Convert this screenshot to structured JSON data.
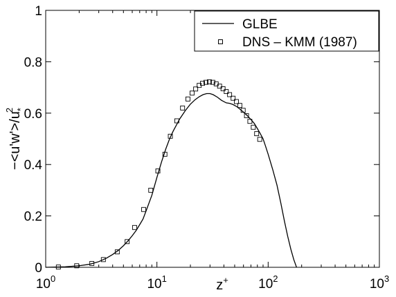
{
  "chart_data": {
    "type": "line",
    "x_scale": "log",
    "xlim": [
      1,
      1000
    ],
    "ylim": [
      0,
      1
    ],
    "grid": false,
    "legend_position": "top-right",
    "xlabel": {
      "base": "z",
      "superscript": "+"
    },
    "ylabel": {
      "base": "−<u'w'>/u",
      "subscript": "*",
      "superscript": "2"
    },
    "x_ticks": [
      {
        "value": 1,
        "base": "10",
        "exp": "0"
      },
      {
        "value": 10,
        "base": "10",
        "exp": "1"
      },
      {
        "value": 100,
        "base": "10",
        "exp": "2"
      },
      {
        "value": 1000,
        "base": "10",
        "exp": "3"
      }
    ],
    "y_ticks": [
      {
        "value": 0,
        "label": "0"
      },
      {
        "value": 0.2,
        "label": "0.2"
      },
      {
        "value": 0.4,
        "label": "0.4"
      },
      {
        "value": 0.6,
        "label": "0.6"
      },
      {
        "value": 0.8,
        "label": "0.8"
      },
      {
        "value": 1,
        "label": "1"
      }
    ],
    "series": [
      {
        "name": "GLBE",
        "style": "line",
        "color": "#000000",
        "points": [
          [
            1.0,
            0.0
          ],
          [
            1.5,
            0.002
          ],
          [
            2.0,
            0.006
          ],
          [
            2.5,
            0.012
          ],
          [
            3.0,
            0.022
          ],
          [
            3.5,
            0.035
          ],
          [
            4.0,
            0.05
          ],
          [
            4.5,
            0.066
          ],
          [
            5.0,
            0.084
          ],
          [
            5.5,
            0.103
          ],
          [
            6.0,
            0.123
          ],
          [
            6.5,
            0.143
          ],
          [
            7.0,
            0.166
          ],
          [
            7.5,
            0.188
          ],
          [
            8.0,
            0.22
          ],
          [
            9.0,
            0.28
          ],
          [
            10.0,
            0.35
          ],
          [
            11.0,
            0.41
          ],
          [
            12.0,
            0.46
          ],
          [
            13.0,
            0.5
          ],
          [
            14.0,
            0.53
          ],
          [
            16.0,
            0.577
          ],
          [
            18.0,
            0.61
          ],
          [
            20.0,
            0.635
          ],
          [
            22.0,
            0.652
          ],
          [
            24.0,
            0.664
          ],
          [
            26.0,
            0.672
          ],
          [
            28.0,
            0.676
          ],
          [
            30.0,
            0.676
          ],
          [
            32.0,
            0.672
          ],
          [
            35.0,
            0.662
          ],
          [
            38.0,
            0.65
          ],
          [
            42.0,
            0.64
          ],
          [
            45.0,
            0.638
          ],
          [
            48.0,
            0.634
          ],
          [
            52.0,
            0.626
          ],
          [
            56.0,
            0.615
          ],
          [
            60.0,
            0.604
          ],
          [
            65.0,
            0.59
          ],
          [
            70.0,
            0.575
          ],
          [
            75.0,
            0.56
          ],
          [
            80.0,
            0.54
          ],
          [
            85.0,
            0.52
          ],
          [
            90.0,
            0.5
          ],
          [
            95.0,
            0.47
          ],
          [
            100.0,
            0.44
          ],
          [
            110.0,
            0.38
          ],
          [
            120.0,
            0.32
          ],
          [
            130.0,
            0.25
          ],
          [
            140.0,
            0.18
          ],
          [
            150.0,
            0.12
          ],
          [
            160.0,
            0.07
          ],
          [
            170.0,
            0.03
          ],
          [
            180.0,
            0.0
          ]
        ]
      },
      {
        "name": "DNS – KMM (1987)",
        "style": "markers",
        "marker": "square",
        "color": "#000000",
        "points": [
          [
            1.3,
            0.001
          ],
          [
            1.9,
            0.006
          ],
          [
            2.6,
            0.015
          ],
          [
            3.3,
            0.03
          ],
          [
            4.4,
            0.06
          ],
          [
            5.4,
            0.1
          ],
          [
            6.3,
            0.155
          ],
          [
            7.6,
            0.225
          ],
          [
            8.8,
            0.3
          ],
          [
            10.2,
            0.375
          ],
          [
            11.8,
            0.44
          ],
          [
            13.2,
            0.51
          ],
          [
            15.1,
            0.57
          ],
          [
            17.0,
            0.62
          ],
          [
            19.0,
            0.655
          ],
          [
            20.7,
            0.678
          ],
          [
            22.3,
            0.694
          ],
          [
            24.0,
            0.708
          ],
          [
            25.7,
            0.716
          ],
          [
            27.6,
            0.72
          ],
          [
            29.6,
            0.722
          ],
          [
            31.8,
            0.72
          ],
          [
            34.1,
            0.714
          ],
          [
            36.6,
            0.705
          ],
          [
            39.3,
            0.695
          ],
          [
            42.0,
            0.684
          ],
          [
            45.0,
            0.672
          ],
          [
            48.4,
            0.658
          ],
          [
            51.8,
            0.645
          ],
          [
            55.6,
            0.63
          ],
          [
            59.6,
            0.611
          ],
          [
            63.9,
            0.59
          ],
          [
            68.5,
            0.568
          ],
          [
            73.5,
            0.545
          ],
          [
            78.8,
            0.52
          ],
          [
            84.0,
            0.498
          ]
        ]
      }
    ]
  }
}
